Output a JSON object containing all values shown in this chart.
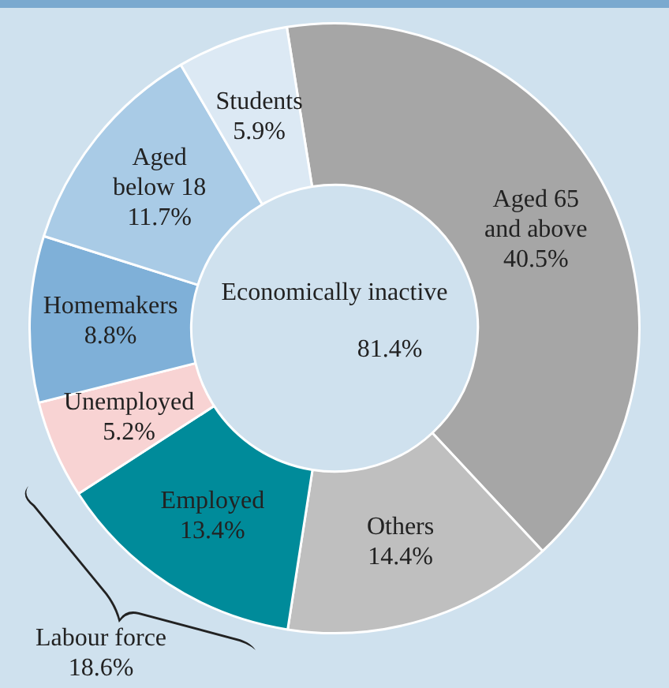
{
  "chart_data": {
    "type": "donut",
    "categories": [
      "Aged 65\nand above",
      "Others",
      "Employed",
      "Unemployed",
      "Homemakers",
      "Aged\nbelow 18",
      "Students"
    ],
    "values": [
      40.5,
      14.4,
      13.4,
      5.2,
      8.8,
      11.7,
      5.9
    ],
    "value_labels": [
      "40.5%",
      "14.4%",
      "13.4%",
      "5.2%",
      "8.8%",
      "11.7%",
      "5.9%"
    ],
    "colors": [
      "#a6a6a6",
      "#bfbfbf",
      "#008b9a",
      "#f8d3d3",
      "#7fb0d8",
      "#a9cbe6",
      "#dce9f4"
    ],
    "annotations": [
      "Economically inactive\n81.4%",
      "Labour force\n18.6%"
    ],
    "legend": false
  }
}
